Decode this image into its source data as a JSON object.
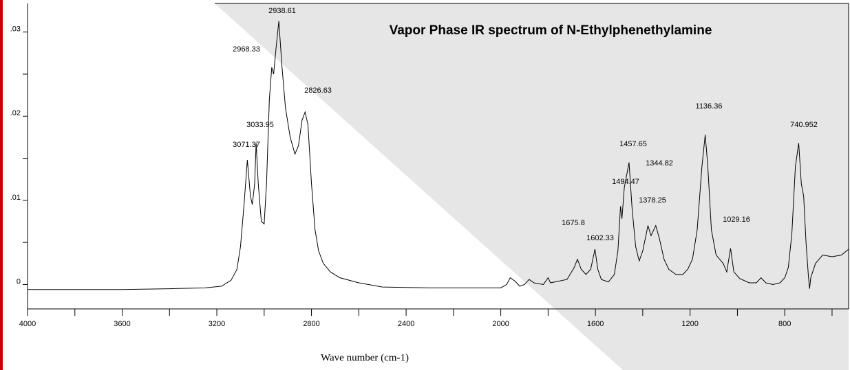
{
  "chart_data": {
    "type": "line",
    "title": "Vapor Phase IR spectrum of N-Ethylphenethylamine",
    "x_label": "Wave number (cm-1)",
    "xlim": [
      4000,
      530
    ],
    "ylim": [
      -0.0029,
      0.0334
    ],
    "xticks": [
      4000,
      3600,
      3200,
      2800,
      2400,
      2000,
      1600,
      1200,
      800
    ],
    "xticks_minor": [
      3800,
      3400,
      3000,
      2600,
      2200,
      1800,
      1400,
      1000,
      600
    ],
    "yticks": [
      {
        "value": 0,
        "label": "0"
      },
      {
        "value": 0.01,
        "label": ".01"
      },
      {
        "value": 0.02,
        "label": ".02"
      },
      {
        "value": 0.03,
        "label": ".03"
      }
    ],
    "yticks_minor": [
      0.005,
      0.015,
      0.025
    ],
    "color": "#000000",
    "annotations": [
      "2938.61",
      "2968.33",
      "2826.63",
      "3033.95",
      "3071.37",
      "1457.65",
      "1344.82",
      "1494.47",
      "1378.25",
      "1675.8",
      "1029.16",
      "1602.33",
      "1136.36",
      "740.952"
    ],
    "x": [
      4000,
      3800,
      3600,
      3400,
      3250,
      3180,
      3140,
      3115,
      3100,
      3085,
      3071,
      3058,
      3050,
      3040,
      3034,
      3025,
      3012,
      3000,
      2990,
      2978,
      2968,
      2960,
      2950,
      2938,
      2925,
      2910,
      2890,
      2870,
      2855,
      2840,
      2827,
      2815,
      2800,
      2785,
      2770,
      2750,
      2720,
      2680,
      2600,
      2500,
      2300,
      2100,
      2000,
      1975,
      1960,
      1940,
      1920,
      1900,
      1880,
      1860,
      1820,
      1800,
      1790,
      1720,
      1690,
      1676,
      1660,
      1640,
      1620,
      1602,
      1590,
      1575,
      1545,
      1520,
      1505,
      1494,
      1488,
      1478,
      1458,
      1445,
      1430,
      1415,
      1400,
      1378,
      1365,
      1345,
      1330,
      1310,
      1290,
      1260,
      1230,
      1210,
      1190,
      1170,
      1150,
      1136,
      1125,
      1110,
      1090,
      1060,
      1045,
      1029,
      1015,
      990,
      950,
      920,
      900,
      880,
      850,
      820,
      800,
      785,
      770,
      755,
      741,
      730,
      720,
      710,
      700,
      695,
      690,
      670,
      640,
      600,
      560,
      530
    ],
    "values": [
      -0.0006,
      -0.0006,
      -0.0006,
      -0.0005,
      -0.0004,
      -0.0002,
      0.0005,
      0.0018,
      0.0045,
      0.0095,
      0.0148,
      0.0105,
      0.0095,
      0.012,
      0.0168,
      0.012,
      0.0075,
      0.0072,
      0.012,
      0.022,
      0.0258,
      0.025,
      0.028,
      0.0313,
      0.026,
      0.021,
      0.0175,
      0.0155,
      0.0165,
      0.0195,
      0.0205,
      0.019,
      0.012,
      0.0065,
      0.004,
      0.0025,
      0.0015,
      0.0008,
      0.0002,
      -0.0003,
      -0.0004,
      -0.0004,
      -0.0004,
      0.0,
      0.0008,
      0.0004,
      -0.0002,
      0.0,
      0.0006,
      0.0002,
      0.0,
      0.0008,
      0.0002,
      0.0006,
      0.002,
      0.003,
      0.0018,
      0.0012,
      0.0018,
      0.0042,
      0.0018,
      0.0006,
      0.0003,
      0.0012,
      0.004,
      0.0093,
      0.0078,
      0.0115,
      0.0145,
      0.009,
      0.0045,
      0.0028,
      0.004,
      0.007,
      0.0058,
      0.007,
      0.0055,
      0.003,
      0.0018,
      0.0012,
      0.0012,
      0.0018,
      0.003,
      0.0065,
      0.014,
      0.0178,
      0.014,
      0.0065,
      0.0035,
      0.0025,
      0.0015,
      0.0043,
      0.0015,
      0.0007,
      0.0002,
      0.0002,
      0.0008,
      0.0002,
      0.0,
      0.0002,
      0.0008,
      0.002,
      0.006,
      0.014,
      0.0168,
      0.012,
      0.0105,
      0.005,
      0.001,
      -0.0005,
      0.0008,
      0.0025,
      0.0035,
      0.0033,
      0.0035,
      0.0042
    ]
  }
}
